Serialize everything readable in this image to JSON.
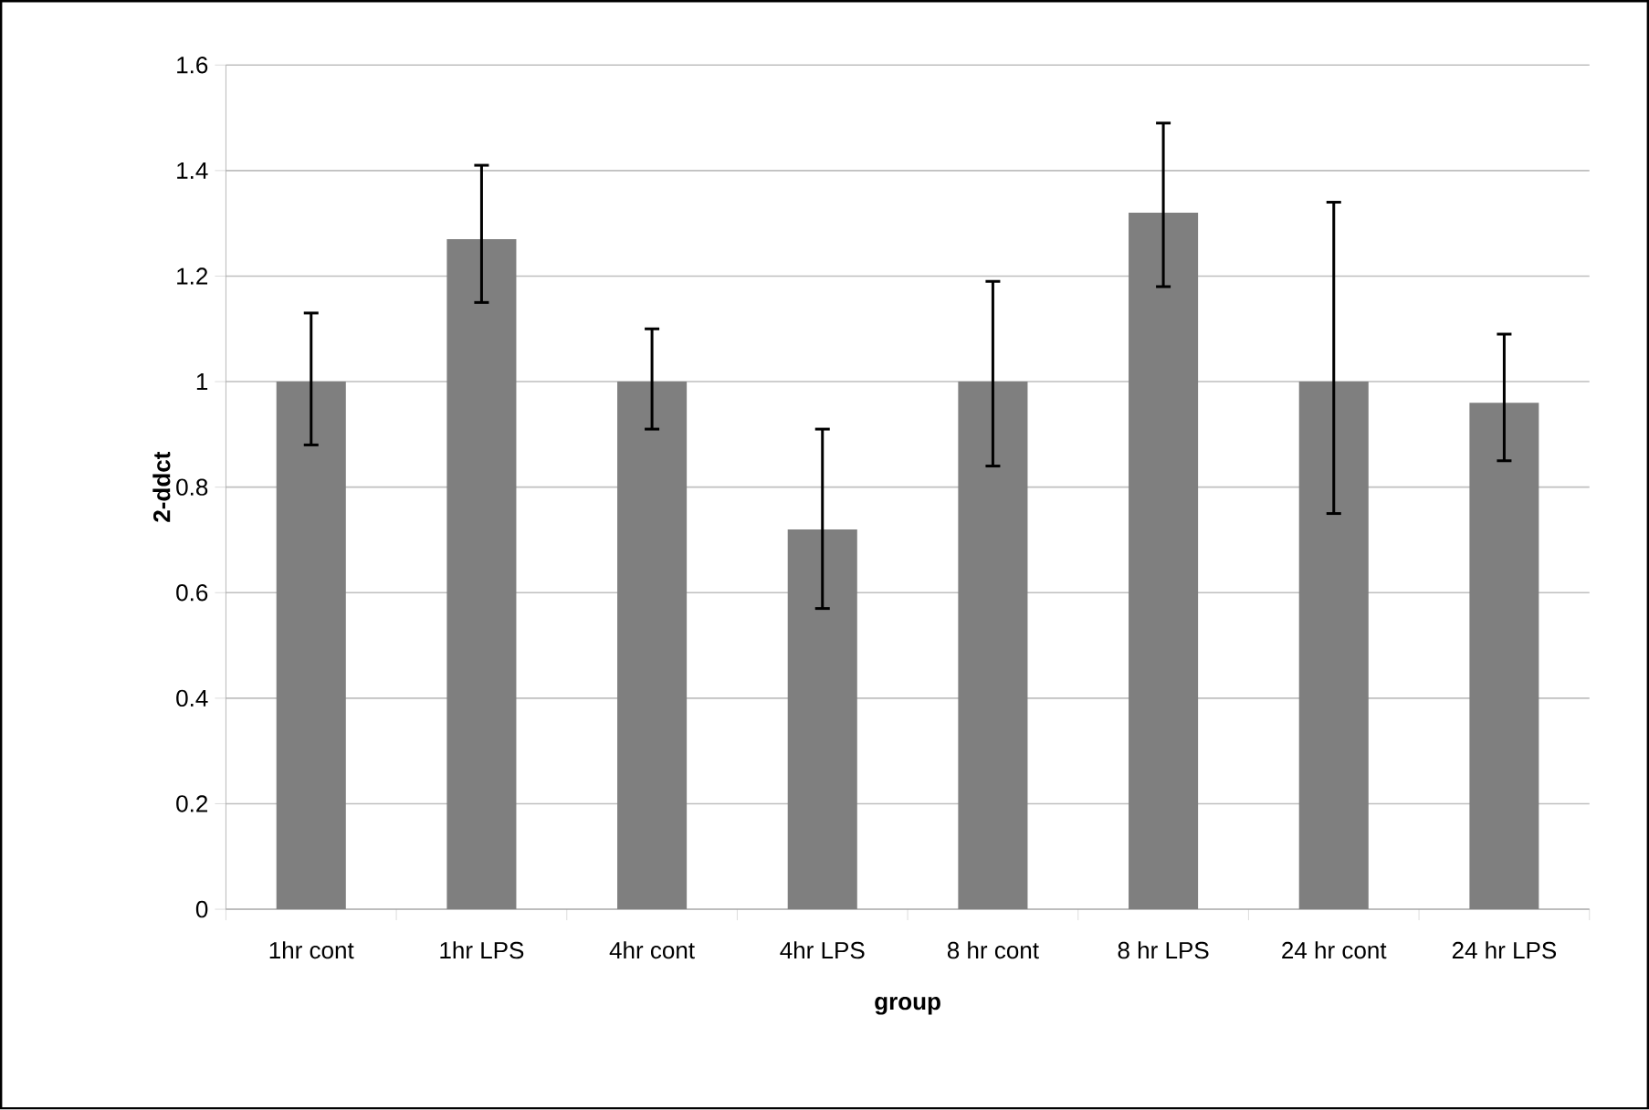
{
  "chart_data": {
    "type": "bar",
    "xlabel": "group",
    "ylabel": "2-ddct",
    "categories": [
      "1hr cont",
      "1hr LPS",
      "4hr cont",
      "4hr LPS",
      "8 hr cont",
      "8 hr LPS",
      "24 hr cont",
      "24 hr LPS"
    ],
    "values": [
      1.0,
      1.27,
      1.0,
      0.72,
      1.0,
      1.32,
      1.0,
      0.96
    ],
    "errors": [
      [
        0.88,
        1.13
      ],
      [
        1.15,
        1.41
      ],
      [
        0.91,
        1.1
      ],
      [
        0.57,
        0.91
      ],
      [
        0.84,
        1.19
      ],
      [
        1.18,
        1.49
      ],
      [
        0.75,
        1.34
      ],
      [
        0.85,
        1.09
      ]
    ],
    "color": "#7f7f7f",
    "ylim": [
      0,
      1.6
    ],
    "yticks": [
      0,
      0.2,
      0.4,
      0.6,
      0.8,
      1,
      1.2,
      1.4,
      1.6
    ],
    "grid": "y"
  }
}
